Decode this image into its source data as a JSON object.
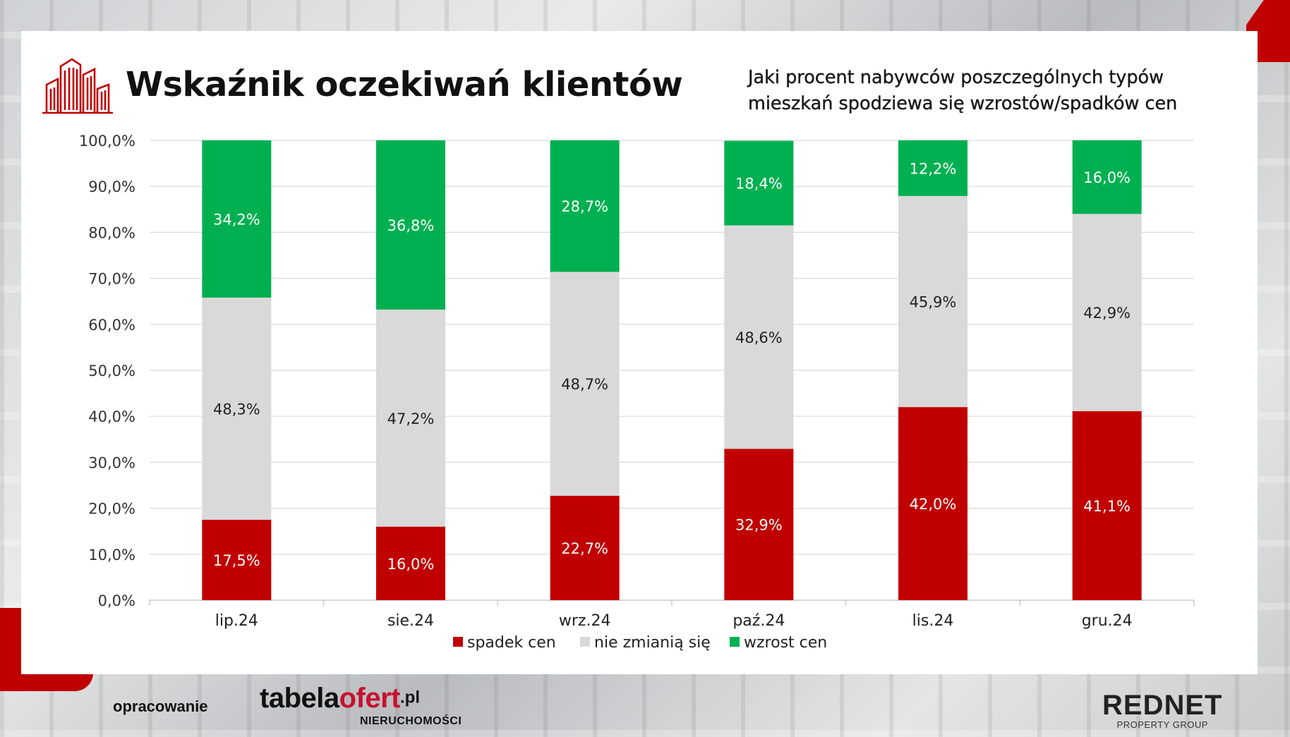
{
  "title": "Wskaźnik oczekiwań klientów",
  "subtitle_lines": [
    "Jaki procent nabywców poszczególnych typów",
    "mieszkań spodziewa się wzrostów/spadków cen"
  ],
  "colors": {
    "accent": "#c00000",
    "spadek": "#c00000",
    "nie_zmienia": "#d9d9d9",
    "wzrost": "#00b050",
    "grid": "#d9d9d9"
  },
  "chart_data": {
    "type": "bar",
    "stacked": true,
    "categories": [
      "lip.24",
      "sie.24",
      "wrz.24",
      "paź.24",
      "lis.24",
      "gru.24"
    ],
    "series": [
      {
        "name": "spadek cen",
        "values": [
          17.5,
          16.0,
          22.7,
          32.9,
          42.0,
          41.1
        ],
        "labels": [
          "17,5%",
          "16,0%",
          "22,7%",
          "32,9%",
          "42,0%",
          "41,1%"
        ]
      },
      {
        "name": "nie zmianią się",
        "values": [
          48.3,
          47.2,
          48.7,
          48.6,
          45.9,
          42.9
        ],
        "labels": [
          "48,3%",
          "47,2%",
          "48,7%",
          "48,6%",
          "45,9%",
          "42,9%"
        ]
      },
      {
        "name": "wzrost cen",
        "values": [
          34.2,
          36.8,
          28.7,
          18.4,
          12.2,
          16.0
        ],
        "labels": [
          "34,2%",
          "36,8%",
          "28,7%",
          "18,4%",
          "12,2%",
          "16,0%"
        ]
      }
    ],
    "ylim": [
      0,
      100
    ],
    "yticks": [
      "0,0%",
      "10,0%",
      "20,0%",
      "30,0%",
      "40,0%",
      "50,0%",
      "60,0%",
      "70,0%",
      "80,0%",
      "90,0%",
      "100,0%"
    ],
    "grid": true,
    "legend": "bottom"
  },
  "footer": {
    "label": "opracowanie",
    "tabela_main": "tabela",
    "tabela_red": "ofert",
    "tabela_pl": ".pl",
    "tabela_sub": "NIERUCHOMOŚCI",
    "rednet_main": "REDNET",
    "rednet_sub": "PROPERTY GROUP"
  }
}
